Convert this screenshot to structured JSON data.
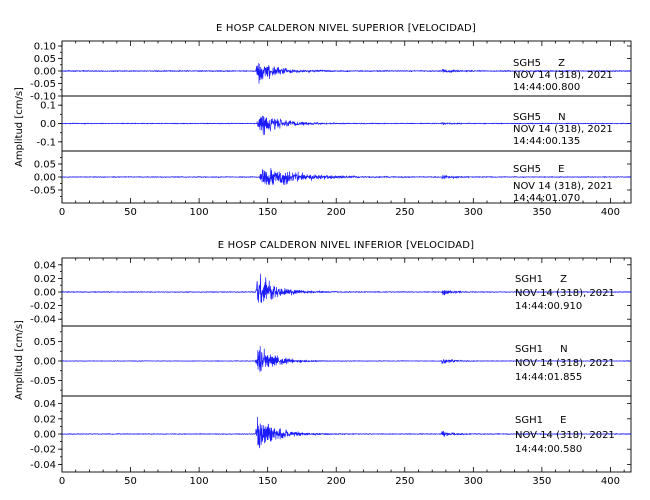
{
  "chart_data": [
    {
      "type": "line",
      "title": "E HOSP CALDERON NIVEL SUPERIOR [VELOCIDAD]",
      "ylabel": "Amplitud [cm/s]",
      "xlabel": "",
      "xlim": [
        0,
        415
      ],
      "xticks": [
        "0",
        "50",
        "100",
        "150",
        "200",
        "250",
        "300",
        "350",
        "400"
      ],
      "grid": false,
      "trace_color": "#1a1aff",
      "traces": [
        {
          "station": "SGH5",
          "component": "Z",
          "date": "NOV 14 (318), 2021",
          "time": "14:44:00.800",
          "ylim": [
            -0.1,
            0.12
          ],
          "yticks": [
            "0.10",
            "0.05",
            "0.00",
            "-0.05",
            "-0.10"
          ],
          "ytick_values": [
            0.1,
            0.05,
            0.0,
            -0.05,
            -0.1
          ],
          "noise": 0.004,
          "peak_time": 143,
          "peak_amp": 0.09,
          "decay": 12,
          "secondary_time": 278,
          "secondary_amp": 0.012
        },
        {
          "station": "SGH5",
          "component": "N",
          "date": "NOV 14 (318), 2021",
          "time": "14:44:00.135",
          "ylim": [
            -0.15,
            0.15
          ],
          "yticks": [
            "0.1",
            "0.0",
            "-0.1"
          ],
          "ytick_values": [
            0.1,
            0.0,
            -0.1
          ],
          "noise": 0.004,
          "peak_time": 144,
          "peak_amp": 0.11,
          "decay": 15,
          "secondary_time": 278,
          "secondary_amp": 0.01
        },
        {
          "station": "SGH5",
          "component": "E",
          "date": "NOV 14 (318), 2021",
          "time": "14:44:01.070",
          "ylim": [
            -0.1,
            0.1
          ],
          "yticks": [
            "0.05",
            "0.00",
            "-0.05"
          ],
          "ytick_values": [
            0.05,
            0.0,
            -0.05
          ],
          "noise": 0.003,
          "peak_time": 146,
          "peak_amp": 0.09,
          "decay": 22,
          "secondary_time": 278,
          "secondary_amp": 0.012
        }
      ]
    },
    {
      "type": "line",
      "title": "E HOSP CALDERON NIVEL INFERIOR [VELOCIDAD]",
      "ylabel": "Amplitud [cm/s]",
      "xlabel": "",
      "xlim": [
        0,
        415
      ],
      "xticks": [
        "0",
        "50",
        "100",
        "150",
        "200",
        "250",
        "300",
        "350",
        "400"
      ],
      "grid": false,
      "trace_color": "#1a1aff",
      "traces": [
        {
          "station": "SGH1",
          "component": "Z",
          "date": "NOV 14 (318), 2021",
          "time": "14:44:00.910",
          "ylim": [
            -0.05,
            0.05
          ],
          "yticks": [
            "0.04",
            "0.02",
            "0.00",
            "-0.02",
            "-0.04"
          ],
          "ytick_values": [
            0.04,
            0.02,
            0.0,
            -0.02,
            -0.04
          ],
          "noise": 0.0012,
          "peak_time": 143,
          "peak_amp": 0.04,
          "decay": 13,
          "secondary_time": 278,
          "secondary_amp": 0.006
        },
        {
          "station": "SGH1",
          "component": "N",
          "date": "NOV 14 (318), 2021",
          "time": "14:44:01.855",
          "ylim": [
            -0.09,
            0.09
          ],
          "yticks": [
            "0.05",
            "0.00",
            "-0.05"
          ],
          "ytick_values": [
            0.05,
            0.0,
            -0.05
          ],
          "noise": 0.0015,
          "peak_time": 143,
          "peak_amp": 0.07,
          "decay": 11,
          "secondary_time": 278,
          "secondary_amp": 0.01
        },
        {
          "station": "SGH1",
          "component": "E",
          "date": "NOV 14 (318), 2021",
          "time": "14:44:00.580",
          "ylim": [
            -0.05,
            0.05
          ],
          "yticks": [
            "0.04",
            "0.02",
            "0.00",
            "-0.02",
            "-0.04"
          ],
          "ytick_values": [
            0.04,
            0.02,
            0.0,
            -0.02,
            -0.04
          ],
          "noise": 0.001,
          "peak_time": 143,
          "peak_amp": 0.04,
          "decay": 13,
          "secondary_time": 278,
          "secondary_amp": 0.006
        }
      ]
    }
  ]
}
